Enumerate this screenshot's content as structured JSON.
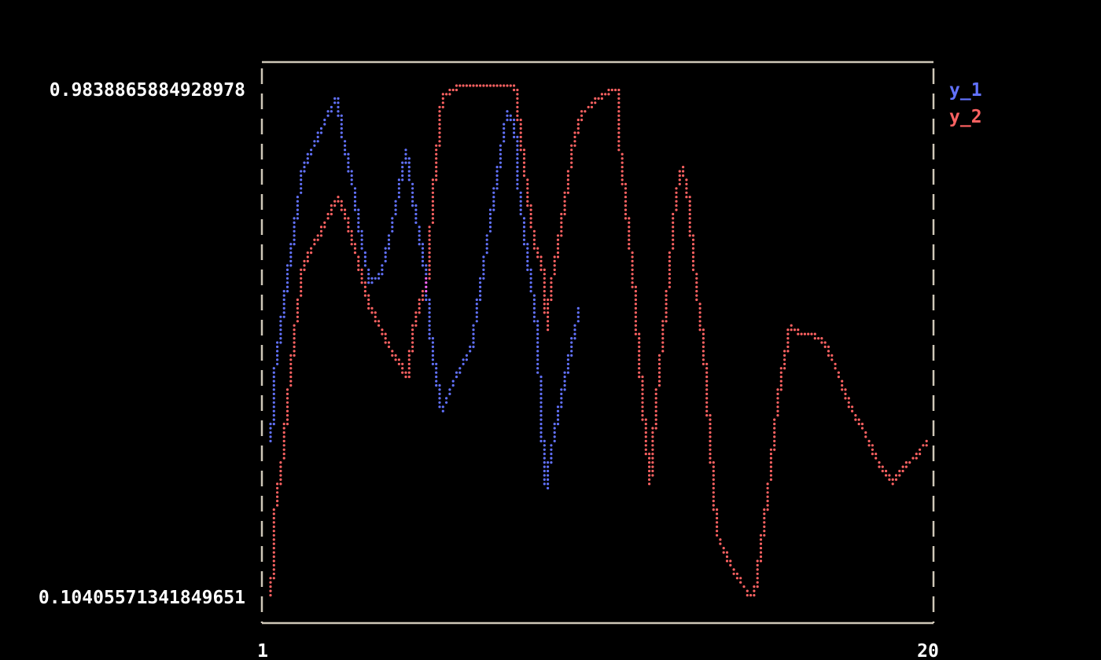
{
  "chart_data": {
    "type": "scatter",
    "title": "",
    "xlabel": "",
    "ylabel": "",
    "xlim": [
      1,
      20
    ],
    "ylim": [
      0.10405571341849651,
      0.9838865884928978
    ],
    "x_tick_labels": [
      "1",
      "20"
    ],
    "y_tick_labels": [
      "0.9838865884928978",
      "0.10405571341849651"
    ],
    "grid": false,
    "legend_position": "right",
    "series": [
      {
        "name": "y_1",
        "color": "#6272ff",
        "x": [
          1.27,
          1.38,
          1.71,
          2.16,
          2.82,
          3.14,
          3.27,
          3.6,
          3.76,
          4.05,
          4.38,
          4.72,
          5.09,
          5.27,
          5.61,
          5.83,
          6.09,
          6.49,
          6.94,
          7.27,
          7.61,
          7.94,
          8.16,
          8.27,
          8.5,
          8.79,
          8.94,
          9.05,
          9.16,
          9.5,
          9.99
        ],
        "y": [
          0.374,
          0.495,
          0.643,
          0.838,
          0.926,
          0.961,
          0.899,
          0.805,
          0.737,
          0.643,
          0.657,
          0.751,
          0.872,
          0.791,
          0.67,
          0.522,
          0.421,
          0.481,
          0.535,
          0.67,
          0.805,
          0.939,
          0.912,
          0.805,
          0.697,
          0.562,
          0.374,
          0.293,
          0.347,
          0.454,
          0.602
        ]
      },
      {
        "name": "y_2",
        "color": "#ff6262",
        "x": [
          1.27,
          1.38,
          1.6,
          1.71,
          1.94,
          2.16,
          2.38,
          2.71,
          2.94,
          3.16,
          3.38,
          3.6,
          4.05,
          4.38,
          4.72,
          5.14,
          5.27,
          5.72,
          5.83,
          5.94,
          6.05,
          6.16,
          6.72,
          8.16,
          8.27,
          8.5,
          8.72,
          8.94,
          9.08,
          9.16,
          9.5,
          9.83,
          10.05,
          10.5,
          11.06,
          11.1,
          11.28,
          11.39,
          11.5,
          11.72,
          11.83,
          11.99,
          12.16,
          12.5,
          12.72,
          12.9,
          13.06,
          13.28,
          13.5,
          13.73,
          13.88,
          14.06,
          14.39,
          14.84,
          14.95,
          15.17,
          15.39,
          15.62,
          15.95,
          16.28,
          16.84,
          17.17,
          17.62,
          18.06,
          18.4,
          18.84,
          19.06,
          19.5,
          19.84
        ],
        "y": [
          0.105,
          0.253,
          0.347,
          0.428,
          0.562,
          0.67,
          0.697,
          0.737,
          0.764,
          0.791,
          0.757,
          0.71,
          0.603,
          0.562,
          0.522,
          0.481,
          0.562,
          0.657,
          0.791,
          0.845,
          0.939,
          0.966,
          0.984,
          0.984,
          0.926,
          0.805,
          0.71,
          0.67,
          0.566,
          0.63,
          0.751,
          0.886,
          0.933,
          0.96,
          0.977,
          0.892,
          0.791,
          0.724,
          0.657,
          0.481,
          0.401,
          0.3,
          0.441,
          0.643,
          0.791,
          0.845,
          0.791,
          0.643,
          0.535,
          0.333,
          0.212,
          0.185,
          0.145,
          0.1041,
          0.11,
          0.212,
          0.32,
          0.455,
          0.569,
          0.556,
          0.549,
          0.508,
          0.434,
          0.387,
          0.34,
          0.3,
          0.32,
          0.347,
          0.374
        ]
      }
    ]
  }
}
